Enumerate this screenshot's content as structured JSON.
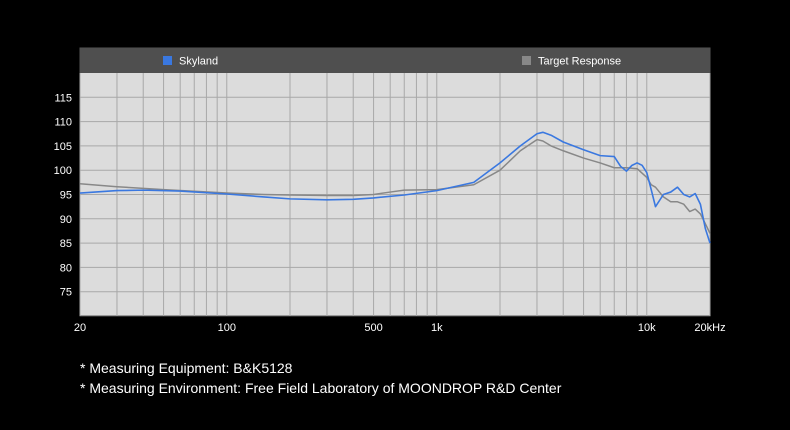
{
  "chart_data": {
    "type": "line",
    "x_scale": "log",
    "xlim": [
      20,
      20000
    ],
    "ylim": [
      70,
      120
    ],
    "grid": true,
    "legend_position": "top",
    "x_tick_labels": [
      {
        "value": 20,
        "label": "20"
      },
      {
        "value": 100,
        "label": "100"
      },
      {
        "value": 500,
        "label": "500"
      },
      {
        "value": 1000,
        "label": "1k"
      },
      {
        "value": 10000,
        "label": "10k"
      },
      {
        "value": 20000,
        "label": "20kHz"
      }
    ],
    "y_ticks": [
      75,
      80,
      85,
      90,
      95,
      100,
      105,
      110,
      115
    ],
    "series": [
      {
        "name": "Skyland",
        "color": "#3a78e0",
        "x": [
          20,
          30,
          40,
          60,
          100,
          150,
          200,
          300,
          400,
          500,
          700,
          1000,
          1500,
          2000,
          2500,
          3000,
          3200,
          3500,
          4000,
          5000,
          6000,
          7000,
          7500,
          8000,
          8500,
          9000,
          9500,
          10000,
          10500,
          11000,
          12000,
          13000,
          14000,
          15000,
          16000,
          17000,
          18000,
          19000,
          20000
        ],
        "y": [
          95.3,
          95.8,
          95.9,
          95.7,
          95.1,
          94.5,
          94.1,
          93.9,
          94.0,
          94.3,
          94.9,
          95.8,
          97.5,
          101.5,
          105.0,
          107.5,
          107.8,
          107.2,
          105.8,
          104.2,
          103.0,
          102.8,
          100.8,
          99.8,
          101.0,
          101.5,
          101.0,
          99.5,
          96.0,
          92.5,
          95.0,
          95.5,
          96.5,
          95.0,
          94.5,
          95.2,
          93.0,
          88.0,
          85.0
        ]
      },
      {
        "name": "Target Response",
        "color": "#888888",
        "x": [
          20,
          30,
          50,
          100,
          150,
          200,
          300,
          400,
          500,
          600,
          700,
          1000,
          1500,
          2000,
          2500,
          3000,
          3200,
          3500,
          4000,
          5000,
          6000,
          7000,
          8000,
          9000,
          10000,
          10500,
          11000,
          12000,
          13000,
          14000,
          15000,
          16000,
          17000,
          18000,
          19000,
          20000
        ],
        "y": [
          97.2,
          96.6,
          96.0,
          95.3,
          95.0,
          94.9,
          94.8,
          94.8,
          95.0,
          95.5,
          95.9,
          96.0,
          97.0,
          100.0,
          104.0,
          106.3,
          106.0,
          105.0,
          104.0,
          102.5,
          101.5,
          100.5,
          100.5,
          100.3,
          98.5,
          97.0,
          96.5,
          94.5,
          93.5,
          93.5,
          93.0,
          91.5,
          92.0,
          91.0,
          89.0,
          87.0
        ]
      }
    ]
  },
  "notes": [
    "* Measuring Equipment: B&K5128",
    "* Measuring Environment: Free Field Laboratory of MOONDROP R&D Center"
  ],
  "colors": {
    "background": "#000000",
    "plot_background": "#dcdcdc",
    "legend_bar": "#4f4f4f",
    "grid": "#a8a8a8"
  }
}
